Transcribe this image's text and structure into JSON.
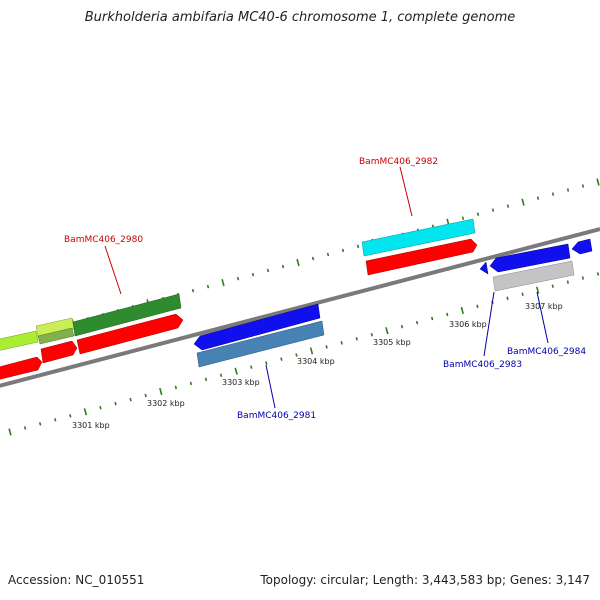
{
  "title": "Burkholderia ambifaria MC40-6 chromosome 1, complete genome",
  "footer": {
    "accession": "Accession: NC_010551",
    "topology": "Topology: circular; Length: 3,443,583 bp; Genes: 3,147"
  },
  "ticks": [
    {
      "label": "3301 kbp"
    },
    {
      "label": "3302 kbp"
    },
    {
      "label": "3303 kbp"
    },
    {
      "label": "3304 kbp"
    },
    {
      "label": "3305 kbp"
    },
    {
      "label": "3306 kbp"
    },
    {
      "label": "3307 kbp"
    }
  ],
  "gene_labels": [
    {
      "name": "BamMC406_2980",
      "color": "#cc0000"
    },
    {
      "name": "BamMC406_2981",
      "color": "#0000aa"
    },
    {
      "name": "BamMC406_2982",
      "color": "#cc0000"
    },
    {
      "name": "BamMC406_2983",
      "color": "#0000aa"
    },
    {
      "name": "BamMC406_2984",
      "color": "#0000aa"
    }
  ],
  "colors": {
    "backbone": "#808080",
    "tick": "#2e7d1e",
    "cds": "#ff0000",
    "gene_forward": "#2e8b2e",
    "gene_reverse": "#0000ee",
    "cyan_feature": "#00e5ee",
    "steelblue_feature": "#4682b4",
    "gray_feature": "#bdbdbd",
    "lime_feature": "#aaee33"
  }
}
